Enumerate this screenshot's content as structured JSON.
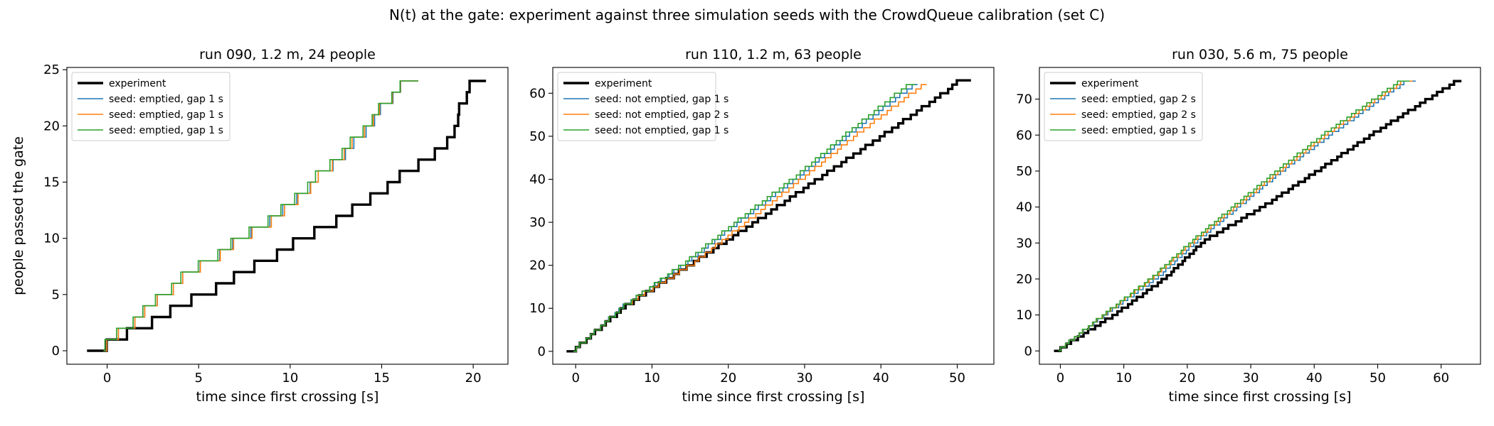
{
  "figure": {
    "suptitle": "N(t) at the gate: experiment against three simulation seeds with the CrowdQueue calibration (set C)"
  },
  "colors": {
    "experiment": "#000000",
    "seed_1": "#1f77b4",
    "seed_2": "#ff7f0e",
    "seed_3": "#2ca02c"
  },
  "chart_data": [
    {
      "type": "line",
      "step": true,
      "title": "run 090, 1.2 m, 24 people",
      "xlabel": "time since first crossing [s]",
      "ylabel": "people passed the gate",
      "xlim": [
        -2.2,
        21.9
      ],
      "ylim": [
        -1.2,
        25.2
      ],
      "xticks": [
        0,
        5,
        10,
        15,
        20
      ],
      "yticks": [
        0,
        5,
        10,
        15,
        20,
        25
      ],
      "legend_position": "top-left",
      "series": [
        {
          "name": "experiment",
          "kind": "experiment",
          "n_total": 24,
          "t_start": -1.1,
          "t_end": 20.7,
          "knots": [
            [
              0,
              0
            ],
            [
              6,
              7.0
            ],
            [
              12,
              13.5
            ],
            [
              18,
              18.7
            ],
            [
              24,
              20.0
            ]
          ]
        },
        {
          "name": "seed: emptied, gap 1 s",
          "kind": "seed_1",
          "n_total": 24,
          "t_start": -0.2,
          "t_end": 17.0,
          "knots": [
            [
              0,
              0
            ],
            [
              6,
              4.2
            ],
            [
              12,
              9.7
            ],
            [
              18,
              13.6
            ],
            [
              24,
              16.5
            ]
          ]
        },
        {
          "name": "seed: emptied, gap 1 s",
          "kind": "seed_2",
          "n_total": 24,
          "t_start": -0.2,
          "t_end": 17.0,
          "knots": [
            [
              0,
              0
            ],
            [
              6,
              4.2
            ],
            [
              12,
              9.8
            ],
            [
              18,
              13.5
            ],
            [
              24,
              16.5
            ]
          ]
        },
        {
          "name": "seed: emptied, gap 1 s",
          "kind": "seed_3",
          "n_total": 24,
          "t_start": -0.2,
          "t_end": 17.0,
          "knots": [
            [
              0,
              -0.1
            ],
            [
              6,
              4.1
            ],
            [
              12,
              9.6
            ],
            [
              18,
              13.4
            ],
            [
              24,
              16.5
            ]
          ]
        }
      ]
    },
    {
      "type": "line",
      "step": true,
      "title": "run 110, 1.2 m, 63 people",
      "xlabel": "time since first crossing [s]",
      "ylabel": "",
      "xlim": [
        -3.0,
        54.8
      ],
      "ylim": [
        -3.0,
        66.0
      ],
      "xticks": [
        0,
        10,
        20,
        30,
        40,
        50
      ],
      "yticks": [
        0,
        10,
        20,
        30,
        40,
        50,
        60
      ],
      "legend_position": "top-left",
      "series": [
        {
          "name": "experiment",
          "kind": "experiment",
          "n_total": 63,
          "t_start": -1.2,
          "t_end": 51.8,
          "knots": [
            [
              0,
              0
            ],
            [
              10,
              6.6
            ],
            [
              20,
              15.4
            ],
            [
              30,
              24.0
            ],
            [
              40,
              32.2
            ],
            [
              50,
              40.6
            ],
            [
              60,
              48.7
            ],
            [
              63,
              50.7
            ]
          ]
        },
        {
          "name": "seed: not emptied, gap 1 s",
          "kind": "seed_1",
          "n_total": 62,
          "t_start": -0.3,
          "t_end": 44.8,
          "knots": [
            [
              0,
              0
            ],
            [
              10,
              6.3
            ],
            [
              20,
              14.6
            ],
            [
              30,
              21.8
            ],
            [
              40,
              29.3
            ],
            [
              50,
              36.0
            ],
            [
              62,
              44.8
            ]
          ]
        },
        {
          "name": "seed: not emptied, gap 2 s",
          "kind": "seed_2",
          "n_total": 62,
          "t_start": -0.3,
          "t_end": 46.0,
          "knots": [
            [
              0,
              0
            ],
            [
              10,
              6.4
            ],
            [
              20,
              15.5
            ],
            [
              30,
              22.8
            ],
            [
              40,
              30.0
            ],
            [
              50,
              37.0
            ],
            [
              62,
              46.0
            ]
          ]
        },
        {
          "name": "seed: not emptied, gap 1 s",
          "kind": "seed_3",
          "n_total": 62,
          "t_start": -0.3,
          "t_end": 44.5,
          "knots": [
            [
              0,
              0
            ],
            [
              10,
              6.4
            ],
            [
              20,
              14.3
            ],
            [
              30,
              21.4
            ],
            [
              40,
              28.8
            ],
            [
              50,
              35.5
            ],
            [
              62,
              44.0
            ]
          ]
        }
      ]
    },
    {
      "type": "line",
      "step": true,
      "title": "run 030, 5.6 m, 75 people",
      "xlabel": "time since first crossing [s]",
      "ylabel": "",
      "xlim": [
        -3.3,
        66.2
      ],
      "ylim": [
        -3.7,
        78.8
      ],
      "xticks": [
        0,
        10,
        20,
        30,
        40,
        50,
        60
      ],
      "yticks": [
        0,
        10,
        20,
        30,
        40,
        50,
        60,
        70
      ],
      "legend_position": "top-left",
      "series": [
        {
          "name": "experiment",
          "kind": "experiment",
          "n_total": 75,
          "t_start": -1.0,
          "t_end": 63.2,
          "knots": [
            [
              0,
              0
            ],
            [
              10,
              9.0
            ],
            [
              20,
              16.8
            ],
            [
              30,
              22.7
            ],
            [
              40,
              32.4
            ],
            [
              50,
              41.0
            ],
            [
              60,
              49.5
            ],
            [
              75,
              63.0
            ]
          ]
        },
        {
          "name": "seed: emptied, gap 2 s",
          "kind": "seed_1",
          "n_total": 75,
          "t_start": -0.3,
          "t_end": 56.0,
          "knots": [
            [
              0,
              0
            ],
            [
              10,
              7.5
            ],
            [
              20,
              15.5
            ],
            [
              30,
              21.6
            ],
            [
              40,
              28.5
            ],
            [
              50,
              35.4
            ],
            [
              60,
              43.0
            ],
            [
              75,
              55.0
            ]
          ]
        },
        {
          "name": "seed: emptied, gap 2 s",
          "kind": "seed_2",
          "n_total": 75,
          "t_start": -0.3,
          "t_end": 55.5,
          "knots": [
            [
              0,
              0
            ],
            [
              10,
              7.3
            ],
            [
              20,
              14.8
            ],
            [
              30,
              21.1
            ],
            [
              40,
              28.0
            ],
            [
              50,
              35.0
            ],
            [
              60,
              42.3
            ],
            [
              75,
              54.5
            ]
          ]
        },
        {
          "name": "seed: emptied, gap 1 s",
          "kind": "seed_3",
          "n_total": 75,
          "t_start": -0.3,
          "t_end": 55.0,
          "knots": [
            [
              0,
              0
            ],
            [
              10,
              7.2
            ],
            [
              20,
              14.6
            ],
            [
              30,
              20.8
            ],
            [
              40,
              27.6
            ],
            [
              50,
              34.5
            ],
            [
              60,
              41.8
            ],
            [
              75,
              54.0
            ]
          ]
        }
      ]
    }
  ]
}
